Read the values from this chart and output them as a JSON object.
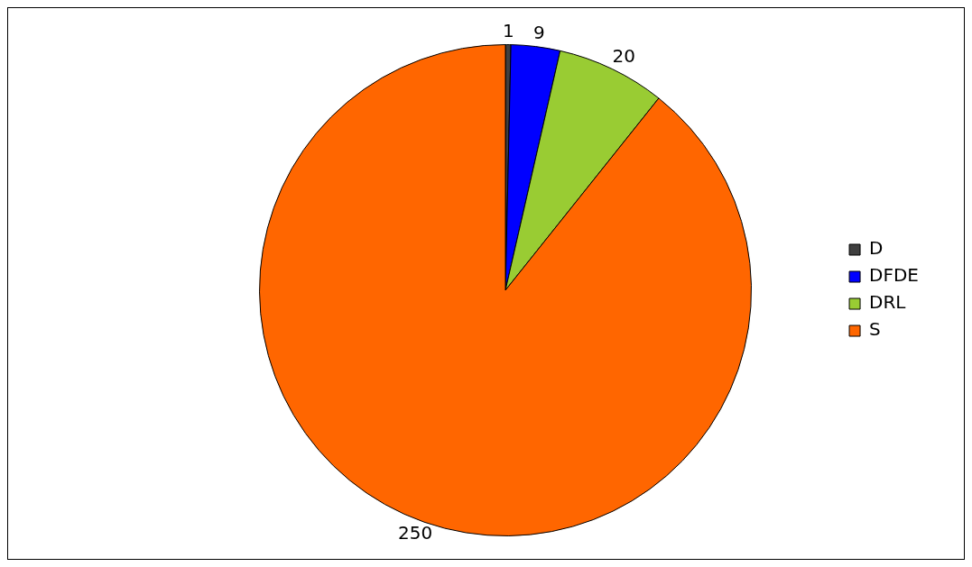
{
  "chart_data": {
    "type": "pie",
    "categories": [
      "D",
      "DFDE",
      "DRL",
      "S"
    ],
    "values": [
      1,
      9,
      20,
      250
    ],
    "colors": [
      "#404040",
      "#0000ff",
      "#99cc33",
      "#ff6600"
    ],
    "data_labels": true,
    "legend": "right"
  }
}
